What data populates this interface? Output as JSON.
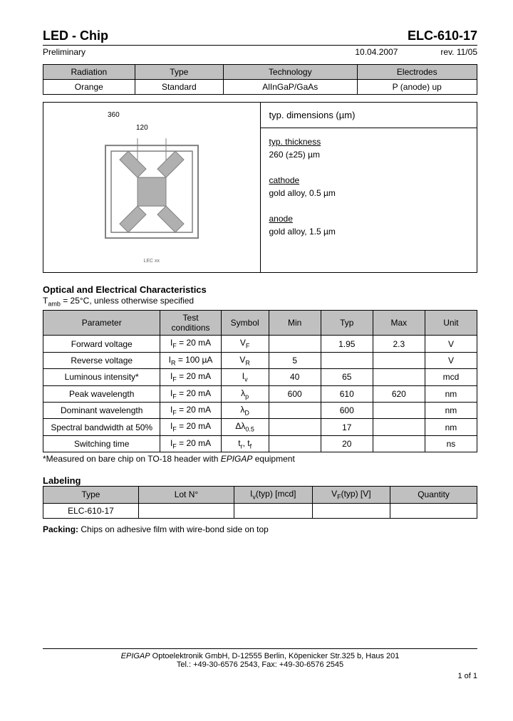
{
  "header": {
    "left": "LED - Chip",
    "right": "ELC-610-17",
    "status": "Preliminary",
    "date": "10.04.2007",
    "rev": "rev. 11/05"
  },
  "classification": {
    "headers": [
      "Radiation",
      "Type",
      "Technology",
      "Electrodes"
    ],
    "values": [
      "Orange",
      "Standard",
      "AlInGaP/GaAs",
      "P (anode) up"
    ]
  },
  "diagram": {
    "dim_outer": "360",
    "dim_inner": "120",
    "caption": "LEC xx"
  },
  "dimensions": {
    "title": "typ. dimensions (µm)",
    "thickness_label": "typ. thickness",
    "thickness_value": "260 (±25) µm",
    "cathode_label": "cathode",
    "cathode_value": "gold alloy, 0.5 µm",
    "anode_label": "anode",
    "anode_value": "gold alloy, 1.5 µm"
  },
  "characteristics": {
    "title": "Optical and Electrical Characteristics",
    "condition_note": "Tamb = 25°C, unless otherwise specified",
    "headers": [
      "Parameter",
      "Test conditions",
      "Symbol",
      "Min",
      "Typ",
      "Max",
      "Unit"
    ],
    "rows": [
      {
        "param": "Forward voltage",
        "cond": "IF = 20 mA",
        "sym": "VF",
        "min": "",
        "typ": "1.95",
        "max": "2.3",
        "unit": "V"
      },
      {
        "param": "Reverse voltage",
        "cond": "IR = 100 µA",
        "sym": "VR",
        "min": "5",
        "typ": "",
        "max": "",
        "unit": "V"
      },
      {
        "param": "Luminous intensity*",
        "cond": "IF = 20 mA",
        "sym": "Iv",
        "min": "40",
        "typ": "65",
        "max": "",
        "unit": "mcd"
      },
      {
        "param": "Peak wavelength",
        "cond": "IF = 20 mA",
        "sym": "λp",
        "min": "600",
        "typ": "610",
        "max": "620",
        "unit": "nm"
      },
      {
        "param": "Dominant wavelength",
        "cond": "IF = 20 mA",
        "sym": "λD",
        "min": "",
        "typ": "600",
        "max": "",
        "unit": "nm"
      },
      {
        "param": "Spectral bandwidth at 50%",
        "cond": "IF = 20 mA",
        "sym": "Δλ0.5",
        "min": "",
        "typ": "17",
        "max": "",
        "unit": "nm"
      },
      {
        "param": "Switching time",
        "cond": "IF = 20 mA",
        "sym": "tr, tf",
        "min": "",
        "typ": "20",
        "max": "",
        "unit": "ns"
      }
    ],
    "footnote": "*Measured on bare chip on TO-18 header with EPIGAP equipment"
  },
  "labeling": {
    "title": "Labeling",
    "headers": [
      "Type",
      "Lot N°",
      "Iv(typ) [mcd]",
      "VF(typ) [V]",
      "Quantity"
    ],
    "type_value": "ELC-610-17"
  },
  "packing": {
    "label": "Packing:",
    "text": "Chips on adhesive film with wire-bond side on top"
  },
  "footer": {
    "line1": "EPIGAP Optoelektronik GmbH, D-12555 Berlin, Köpenicker Str.325 b, Haus 201",
    "line2": "Tel.: +49-30-6576 2543, Fax: +49-30-6576 2545",
    "page": "1 of  1"
  },
  "colors": {
    "header_bg": "#c0c0c0",
    "chip_fill": "#b0b0b0",
    "chip_outline": "#808080"
  }
}
